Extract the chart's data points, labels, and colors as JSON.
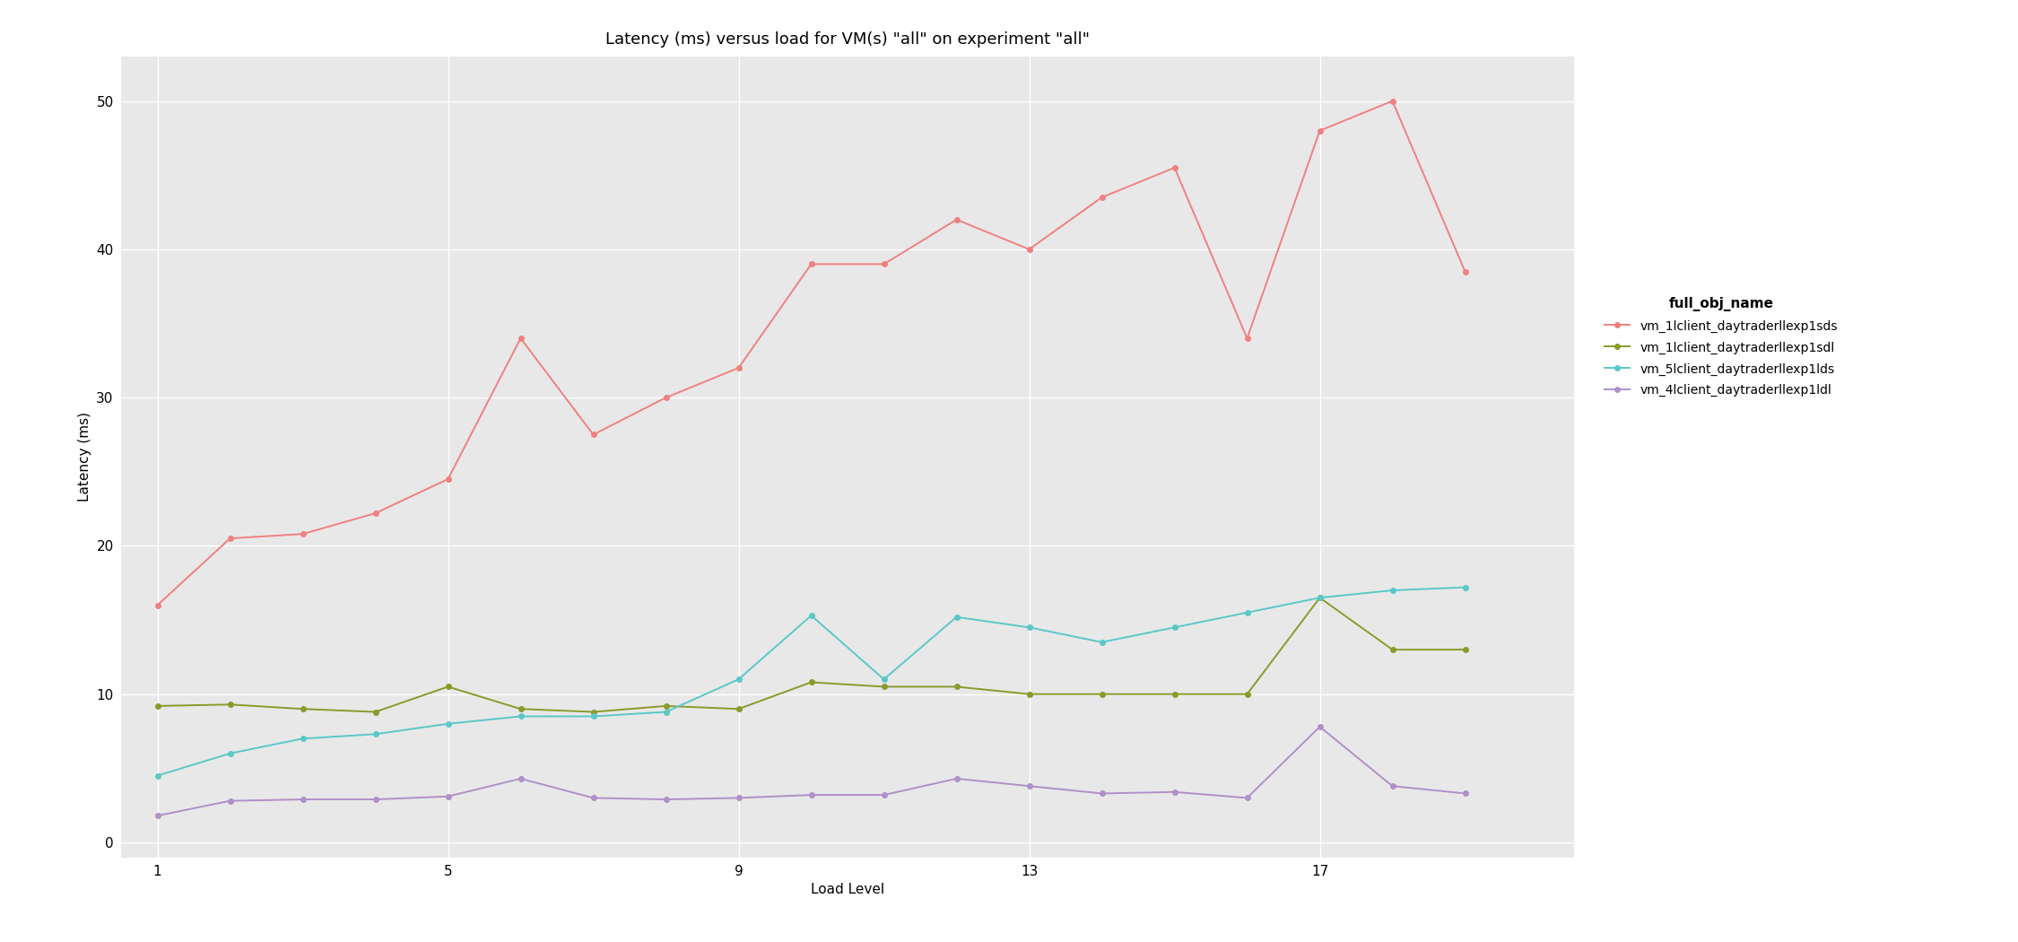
{
  "title": "Latency (ms) versus load for VM(s) \"all\" on experiment \"all\"",
  "xlabel": "Load Level",
  "ylabel": "Latency (ms)",
  "background_color": "#E8E8E8",
  "grid_color": "#FFFFFF",
  "ylim": [
    -1,
    53
  ],
  "xlim": [
    0.5,
    20.5
  ],
  "xticks": [
    1,
    5,
    9,
    13,
    17
  ],
  "yticks": [
    0,
    10,
    20,
    30,
    40,
    50
  ],
  "legend_title": "full_obj_name",
  "series": [
    {
      "label": "vm_1lclient_daytraderllexp1sds",
      "color": "#F08080",
      "x": [
        1,
        2,
        3,
        4,
        5,
        6,
        7,
        8,
        9,
        10,
        11,
        12,
        13,
        14,
        15,
        16,
        17,
        18,
        19
      ],
      "y": [
        16.0,
        20.5,
        20.8,
        22.2,
        24.5,
        34.0,
        27.5,
        30.0,
        32.0,
        39.0,
        39.0,
        42.0,
        40.0,
        43.5,
        45.5,
        34.0,
        48.0,
        50.0,
        38.5
      ]
    },
    {
      "label": "vm_1lclient_daytraderllexp1sdl",
      "color": "#8B9A2A",
      "x": [
        1,
        2,
        3,
        4,
        5,
        6,
        7,
        8,
        9,
        10,
        11,
        12,
        13,
        14,
        15,
        16,
        17,
        18,
        19
      ],
      "y": [
        9.2,
        9.3,
        9.0,
        8.8,
        10.5,
        9.0,
        8.8,
        9.2,
        9.0,
        10.8,
        10.5,
        10.5,
        10.0,
        10.0,
        10.0,
        10.0,
        16.5,
        13.0,
        13.0
      ]
    },
    {
      "label": "vm_5lclient_daytraderllexp1lds",
      "color": "#5BC8C8",
      "x": [
        1,
        2,
        3,
        4,
        5,
        6,
        7,
        8,
        9,
        10,
        11,
        12,
        13,
        14,
        15,
        16,
        17,
        18,
        19
      ],
      "y": [
        4.5,
        6.0,
        7.0,
        7.3,
        8.0,
        8.5,
        8.5,
        8.8,
        11.0,
        15.3,
        11.0,
        15.2,
        14.5,
        13.5,
        14.5,
        15.5,
        16.5,
        17.0,
        17.2
      ]
    },
    {
      "label": "vm_4lclient_daytraderllexp1ldl",
      "color": "#B090C8",
      "x": [
        1,
        2,
        3,
        4,
        5,
        6,
        7,
        8,
        9,
        10,
        11,
        12,
        13,
        14,
        15,
        16,
        17,
        18,
        19
      ],
      "y": [
        1.8,
        2.8,
        2.9,
        2.9,
        3.1,
        4.3,
        3.0,
        2.9,
        3.0,
        3.2,
        3.2,
        4.3,
        3.8,
        3.3,
        3.4,
        3.0,
        7.8,
        3.8,
        3.3
      ]
    }
  ]
}
